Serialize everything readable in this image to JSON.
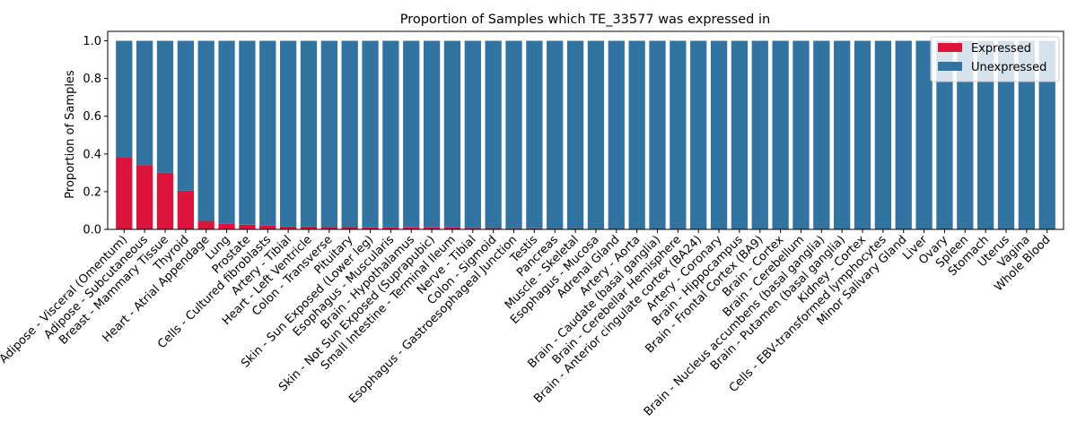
{
  "chart_data": {
    "type": "bar",
    "stacked": true,
    "title": "Proportion of Samples which TE_33577 was expressed in",
    "xlabel": "",
    "ylabel": "Proportion of Samples",
    "ylim": [
      0,
      1.05
    ],
    "yticks": [
      "0.0",
      "0.2",
      "0.4",
      "0.6",
      "0.8",
      "1.0"
    ],
    "legend_position": "top-right",
    "grid": false,
    "categories": [
      "Adipose - Visceral (Omentum)",
      "Adipose - Subcutaneous",
      "Breast - Mammary Tissue",
      "Thyroid",
      "Heart - Atrial Appendage",
      "Lung",
      "Prostate",
      "Cells - Cultured fibroblasts",
      "Artery - Tibial",
      "Heart - Left Ventricle",
      "Colon - Transverse",
      "Pituitary",
      "Skin - Sun Exposed (Lower leg)",
      "Esophagus - Muscularis",
      "Brain - Hypothalamus",
      "Skin - Not Sun Exposed (Suprapubic)",
      "Small Intestine - Terminal Ileum",
      "Nerve - Tibial",
      "Colon - Sigmoid",
      "Esophagus - Gastroesophageal Junction",
      "Testis",
      "Pancreas",
      "Muscle - Skeletal",
      "Esophagus - Mucosa",
      "Adrenal Gland",
      "Artery - Aorta",
      "Brain - Caudate (basal ganglia)",
      "Brain - Cerebellar Hemisphere",
      "Brain - Anterior cingulate cortex (BA24)",
      "Artery - Coronary",
      "Brain - Hippocampus",
      "Brain - Frontal Cortex (BA9)",
      "Brain - Cortex",
      "Brain - Cerebellum",
      "Brain - Nucleus accumbens (basal ganglia)",
      "Brain - Putamen (basal ganglia)",
      "Kidney - Cortex",
      "Cells - EBV-transformed lymphocytes",
      "Minor Salivary Gland",
      "Liver",
      "Ovary",
      "Spleen",
      "Stomach",
      "Uterus",
      "Vagina",
      "Whole Blood"
    ],
    "series": [
      {
        "name": "Expressed",
        "color": "#dc143c",
        "values": [
          0.38,
          0.34,
          0.3,
          0.205,
          0.045,
          0.03,
          0.025,
          0.02,
          0.015,
          0.015,
          0.012,
          0.012,
          0.011,
          0.011,
          0.011,
          0.01,
          0.01,
          0.008,
          0.007,
          0.006,
          0.006,
          0.005,
          0.005,
          0.004,
          0,
          0,
          0,
          0,
          0,
          0,
          0,
          0,
          0,
          0,
          0,
          0,
          0,
          0,
          0,
          0,
          0,
          0,
          0,
          0,
          0,
          0
        ]
      },
      {
        "name": "Unexpressed",
        "color": "#3274a1",
        "values": [
          0.62,
          0.66,
          0.7,
          0.795,
          0.955,
          0.97,
          0.975,
          0.98,
          0.985,
          0.985,
          0.988,
          0.988,
          0.989,
          0.989,
          0.989,
          0.99,
          0.99,
          0.992,
          0.993,
          0.994,
          0.994,
          0.995,
          0.995,
          0.996,
          1,
          1,
          1,
          1,
          1,
          1,
          1,
          1,
          1,
          1,
          1,
          1,
          1,
          1,
          1,
          1,
          1,
          1,
          1,
          1,
          1,
          1
        ]
      }
    ]
  }
}
